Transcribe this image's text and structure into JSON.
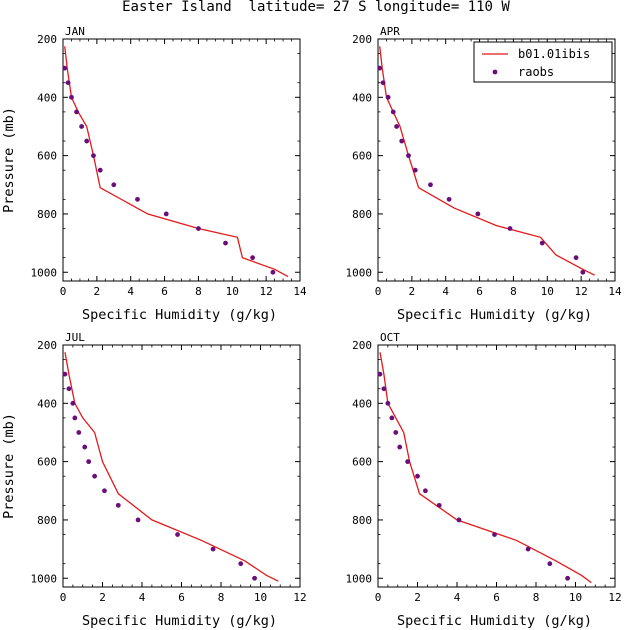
{
  "figure": {
    "title": "Easter Island  latitude= 27 S longitude= 110 W"
  },
  "legend": {
    "placement": "top-right of APR panel",
    "model_label": "b01.01ibis",
    "obs_label": "raobs"
  },
  "colors": {
    "model": "#e31a1c",
    "obs": "#6a0f7a"
  },
  "chart_data": [
    {
      "type": "line",
      "title": "JAN",
      "xlabel": "Specific Humidity (g/kg)",
      "ylabel": "Pressure (mb)",
      "xlim": [
        0,
        14
      ],
      "xticks": [
        0,
        2,
        4,
        6,
        8,
        10,
        12,
        14
      ],
      "ylim": [
        200,
        1030
      ],
      "yticks": [
        200,
        400,
        600,
        800,
        1000
      ],
      "y_reversed": true,
      "series": [
        {
          "name": "b01.01ibis",
          "kind": "line",
          "x": [
            0.1,
            0.25,
            0.5,
            0.9,
            1.4,
            1.8,
            2.2,
            5.0,
            8.0,
            10.3,
            10.6,
            12.5,
            13.3
          ],
          "y": [
            225,
            300,
            400,
            450,
            500,
            600,
            710,
            800,
            850,
            880,
            950,
            990,
            1015
          ]
        },
        {
          "name": "raobs",
          "kind": "scatter",
          "x": [
            0.1,
            0.3,
            0.5,
            0.8,
            1.1,
            1.4,
            1.8,
            2.2,
            3.0,
            4.4,
            6.1,
            8.0,
            9.6,
            11.2,
            12.4
          ],
          "y": [
            300,
            350,
            400,
            450,
            500,
            550,
            600,
            650,
            700,
            750,
            800,
            850,
            900,
            950,
            1000
          ]
        }
      ]
    },
    {
      "type": "line",
      "title": "APR",
      "xlabel": "Specific Humidity (g/kg)",
      "ylabel": "",
      "xlim": [
        0,
        14
      ],
      "xticks": [
        0,
        2,
        4,
        6,
        8,
        10,
        12,
        14
      ],
      "ylim": [
        200,
        1030
      ],
      "yticks": [
        200,
        400,
        600,
        800,
        1000
      ],
      "y_reversed": true,
      "series": [
        {
          "name": "b01.01ibis",
          "kind": "line",
          "x": [
            0.1,
            0.25,
            0.5,
            0.9,
            1.3,
            1.8,
            2.4,
            4.5,
            7.0,
            9.6,
            10.5,
            12.1,
            12.8
          ],
          "y": [
            225,
            300,
            400,
            450,
            500,
            600,
            710,
            780,
            840,
            880,
            940,
            990,
            1010
          ]
        },
        {
          "name": "raobs",
          "kind": "scatter",
          "x": [
            0.1,
            0.3,
            0.6,
            0.9,
            1.1,
            1.4,
            1.8,
            2.2,
            3.1,
            4.2,
            5.9,
            7.8,
            9.7,
            11.7,
            12.1
          ],
          "y": [
            300,
            350,
            400,
            450,
            500,
            550,
            600,
            650,
            700,
            750,
            800,
            850,
            900,
            950,
            1000
          ]
        }
      ]
    },
    {
      "type": "line",
      "title": "JUL",
      "xlabel": "Specific Humidity (g/kg)",
      "ylabel": "Pressure (mb)",
      "xlim": [
        0,
        12
      ],
      "xticks": [
        0,
        2,
        4,
        6,
        8,
        10,
        12
      ],
      "ylim": [
        200,
        1030
      ],
      "yticks": [
        200,
        400,
        600,
        800,
        1000
      ],
      "y_reversed": true,
      "series": [
        {
          "name": "b01.01ibis",
          "kind": "line",
          "x": [
            0.1,
            0.3,
            0.6,
            1.0,
            1.6,
            2.0,
            2.8,
            4.5,
            7.0,
            9.2,
            10.3,
            10.9
          ],
          "y": [
            225,
            300,
            400,
            450,
            500,
            600,
            710,
            800,
            870,
            940,
            990,
            1010
          ]
        },
        {
          "name": "raobs",
          "kind": "scatter",
          "x": [
            0.1,
            0.3,
            0.5,
            0.6,
            0.8,
            1.1,
            1.3,
            1.6,
            2.1,
            2.8,
            3.8,
            5.8,
            7.6,
            9.0,
            9.7
          ],
          "y": [
            300,
            350,
            400,
            450,
            500,
            550,
            600,
            650,
            700,
            750,
            800,
            850,
            900,
            950,
            1000
          ]
        }
      ]
    },
    {
      "type": "line",
      "title": "OCT",
      "xlabel": "Specific Humidity (g/kg)",
      "ylabel": "",
      "xlim": [
        0,
        12
      ],
      "xticks": [
        0,
        2,
        4,
        6,
        8,
        10,
        12
      ],
      "ylim": [
        200,
        1030
      ],
      "yticks": [
        200,
        400,
        600,
        800,
        1000
      ],
      "y_reversed": true,
      "series": [
        {
          "name": "b01.01ibis",
          "kind": "line",
          "x": [
            0.1,
            0.3,
            0.5,
            0.9,
            1.3,
            1.6,
            2.1,
            4.0,
            7.0,
            9.0,
            10.3,
            10.8
          ],
          "y": [
            225,
            300,
            400,
            450,
            500,
            600,
            710,
            800,
            870,
            940,
            990,
            1015
          ]
        },
        {
          "name": "raobs",
          "kind": "scatter",
          "x": [
            0.1,
            0.3,
            0.5,
            0.7,
            0.9,
            1.1,
            1.5,
            2.0,
            2.4,
            3.1,
            4.1,
            5.9,
            7.6,
            8.7,
            9.6
          ],
          "y": [
            300,
            350,
            400,
            450,
            500,
            550,
            600,
            650,
            700,
            750,
            800,
            850,
            900,
            950,
            1000
          ]
        }
      ]
    }
  ]
}
